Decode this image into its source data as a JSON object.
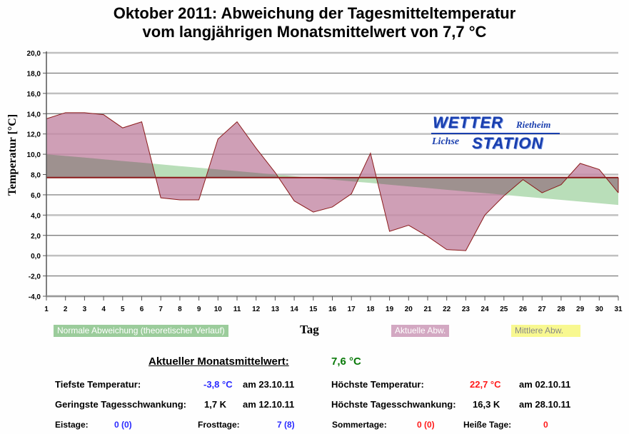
{
  "title": {
    "line1": "Oktober 2011: Abweichung der Tagesmitteltemperatur",
    "line2": "vom langjährigen Monatsmittelwert von 7,7 °C"
  },
  "logo": {
    "word1": "WETTER",
    "word2": "STATION",
    "place1": "Rietheim",
    "place2": "Lichse"
  },
  "legend": {
    "normal": "Normale Abweichung (theoretischer Verlauf)",
    "actual": "Aktuelle Abw.",
    "mean": "Mittlere Abw."
  },
  "colors": {
    "actual_fill": "#c48aa6",
    "actual_line": "#8b1a1a",
    "normal_fill": "#b9deb9",
    "overlap_fill": "#9e918f",
    "mean_line": "#8b1a1a",
    "grid_dark": "#707070",
    "grid_light": "#c0c0c0"
  },
  "chart_data": {
    "type": "area",
    "title": "Oktober 2011: Abweichung der Tagesmitteltemperatur vom langjährigen Monatsmittelwert von 7,7 °C",
    "xlabel": "Tag",
    "ylabel": "Temperatur [°C]",
    "x": [
      1,
      2,
      3,
      4,
      5,
      6,
      7,
      8,
      9,
      10,
      11,
      12,
      13,
      14,
      15,
      16,
      17,
      18,
      19,
      20,
      21,
      22,
      23,
      24,
      25,
      26,
      27,
      28,
      29,
      30,
      31
    ],
    "xticks": [
      "1",
      "2",
      "3",
      "4",
      "5",
      "6",
      "7",
      "8",
      "9",
      "10",
      "11",
      "12",
      "13",
      "14",
      "15",
      "16",
      "17",
      "18",
      "19",
      "20",
      "21",
      "22",
      "23",
      "24",
      "25",
      "26",
      "27",
      "28",
      "29",
      "30",
      "31"
    ],
    "ylim": [
      -4,
      20
    ],
    "yticks": [
      "20,0",
      "18,0",
      "16,0",
      "14,0",
      "12,0",
      "10,0",
      "8,0",
      "6,0",
      "4,0",
      "2,0",
      "0,0",
      "-2,0",
      "-4,0"
    ],
    "ytick_values": [
      20,
      18,
      16,
      14,
      12,
      10,
      8,
      6,
      4,
      2,
      0,
      -2,
      -4
    ],
    "baseline": 7.7,
    "grid": true,
    "legend_position": "bottom",
    "series": [
      {
        "name": "Aktuelle Abw.",
        "values": [
          13.5,
          14.1,
          14.1,
          13.9,
          12.6,
          13.2,
          5.7,
          5.5,
          5.5,
          11.5,
          13.2,
          10.6,
          8.2,
          5.4,
          4.3,
          4.8,
          6.1,
          10.1,
          2.4,
          3.0,
          1.9,
          0.6,
          0.5,
          4.0,
          5.9,
          7.5,
          6.2,
          7.0,
          9.1,
          8.5,
          6.2
        ]
      },
      {
        "name": "Normale Abweichung (theoretischer Verlauf)",
        "values": [
          10.0,
          9.83,
          9.67,
          9.5,
          9.33,
          9.17,
          9.0,
          8.83,
          8.67,
          8.5,
          8.33,
          8.17,
          8.0,
          7.83,
          7.67,
          7.5,
          7.33,
          7.17,
          7.0,
          6.83,
          6.67,
          6.5,
          6.33,
          6.17,
          6.0,
          5.83,
          5.67,
          5.5,
          5.33,
          5.17,
          5.0
        ]
      },
      {
        "name": "Mittlere Abw.",
        "values": [
          7.7,
          7.7,
          7.7,
          7.7,
          7.7,
          7.7,
          7.7,
          7.7,
          7.7,
          7.7,
          7.7,
          7.7,
          7.7,
          7.7,
          7.7,
          7.7,
          7.7,
          7.7,
          7.7,
          7.7,
          7.7,
          7.7,
          7.7,
          7.7,
          7.7,
          7.7,
          7.7,
          7.7,
          7.7,
          7.7,
          7.7
        ]
      }
    ]
  },
  "stats": {
    "monthly_mean_label": "Aktueller Monatsmittelwert:",
    "monthly_mean_value": "7,6 °C",
    "min_temp_label": "Tiefste Temperatur:",
    "min_temp_value": "-3,8 °C",
    "min_temp_date": "am 23.10.11",
    "max_temp_label": "Höchste Temperatur:",
    "max_temp_value": "22,7 °C",
    "max_temp_date": "am 02.10.11",
    "min_range_label": "Geringste Tagesschwankung:",
    "min_range_value": "1,7 K",
    "min_range_date": "am 12.10.11",
    "max_range_label": "Höchste Tagesschwankung:",
    "max_range_value": "16,3 K",
    "max_range_date": "am 28.10.11",
    "ice_days_label": "Eistage:",
    "ice_days_value": "0 (0)",
    "frost_days_label": "Frosttage:",
    "frost_days_value": "7 (8)",
    "summer_days_label": "Sommertage:",
    "summer_days_value": "0 (0)",
    "hot_days_label": "Heiße Tage:",
    "hot_days_value": "0"
  }
}
